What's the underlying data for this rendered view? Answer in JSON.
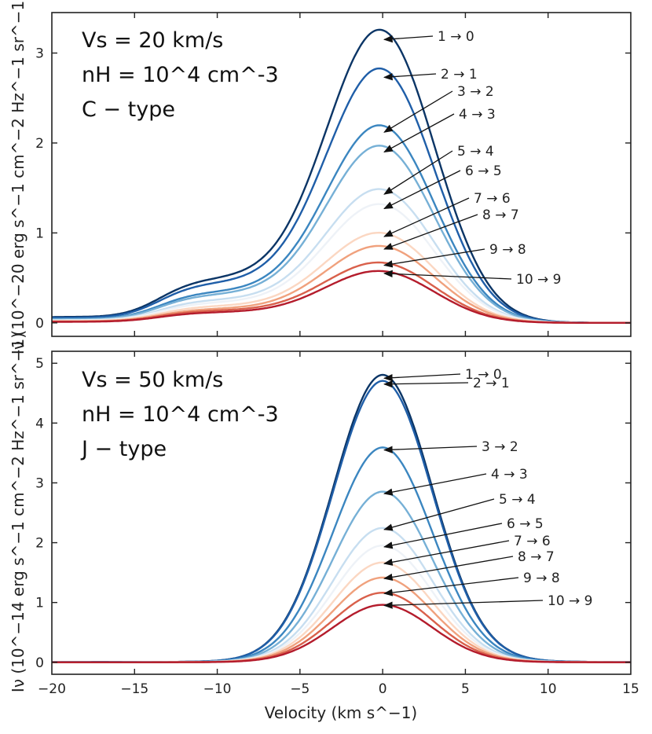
{
  "chart_data": [
    {
      "type": "line",
      "panel": "top",
      "info": [
        "Vs = 20 km/s",
        "nH = 10^4 cm^-3",
        "C − type"
      ],
      "ylabel": "Iν (10^−20 erg s^−1 cm^−2 Hz^−1 sr^−1)",
      "xlim": [
        -20,
        15
      ],
      "ylim": [
        -0.15,
        3.45
      ],
      "yticks": [
        "0",
        "1",
        "2",
        "3"
      ],
      "series": [
        {
          "name": "1 → 0",
          "peak": 3.15,
          "shoulder": 0.5,
          "color": "#0b3566"
        },
        {
          "name": "2 → 1",
          "peak": 2.73,
          "shoulder": 0.45,
          "color": "#1f5ea8"
        },
        {
          "name": "3 → 2",
          "peak": 2.12,
          "shoulder": 0.35,
          "color": "#3b86c0"
        },
        {
          "name": "4 → 3",
          "peak": 1.9,
          "shoulder": 0.32,
          "color": "#76b0d6"
        },
        {
          "name": "5 → 4",
          "peak": 1.43,
          "shoulder": 0.26,
          "color": "#c7def0"
        },
        {
          "name": "6 → 5",
          "peak": 1.27,
          "shoulder": 0.23,
          "color": "#eef2f7"
        },
        {
          "name": "7 → 6",
          "peak": 0.96,
          "shoulder": 0.19,
          "color": "#fbd7c2"
        },
        {
          "name": "8 → 7",
          "peak": 0.82,
          "shoulder": 0.16,
          "color": "#f0a17d"
        },
        {
          "name": "9 → 8",
          "peak": 0.64,
          "shoulder": 0.14,
          "color": "#d9604b"
        },
        {
          "name": "10 → 9",
          "peak": 0.55,
          "shoulder": 0.12,
          "color": "#b41c2c"
        }
      ]
    },
    {
      "type": "line",
      "panel": "bottom",
      "info": [
        "Vs = 50 km/s",
        "nH = 10^4 cm^-3",
        "J − type"
      ],
      "xlabel": "Velocity (km s^−1)",
      "ylabel": "Iν (10^−14 erg s^−1 cm^−2 Hz^−1 sr^−1)",
      "xlim": [
        -20,
        15
      ],
      "ylim": [
        -0.2,
        5.2
      ],
      "xticks": [
        "−20",
        "−15",
        "−10",
        "−5",
        "0",
        "5",
        "10",
        "15"
      ],
      "yticks": [
        "0",
        "1",
        "2",
        "3",
        "4",
        "5"
      ],
      "series": [
        {
          "name": "1 → 0",
          "peak": 4.75,
          "color": "#0b3566"
        },
        {
          "name": "2 → 1",
          "peak": 4.65,
          "color": "#1f5ea8"
        },
        {
          "name": "3 → 2",
          "peak": 3.55,
          "color": "#3b86c0"
        },
        {
          "name": "4 → 3",
          "peak": 2.82,
          "color": "#76b0d6"
        },
        {
          "name": "5 → 4",
          "peak": 2.22,
          "color": "#c7def0"
        },
        {
          "name": "6 → 5",
          "peak": 1.93,
          "color": "#eef2f7"
        },
        {
          "name": "7 → 6",
          "peak": 1.65,
          "color": "#fbd7c2"
        },
        {
          "name": "8 → 7",
          "peak": 1.4,
          "color": "#f0a17d"
        },
        {
          "name": "9 → 8",
          "peak": 1.15,
          "color": "#d9604b"
        },
        {
          "name": "10 → 9",
          "peak": 0.95,
          "color": "#b41c2c"
        }
      ]
    }
  ]
}
